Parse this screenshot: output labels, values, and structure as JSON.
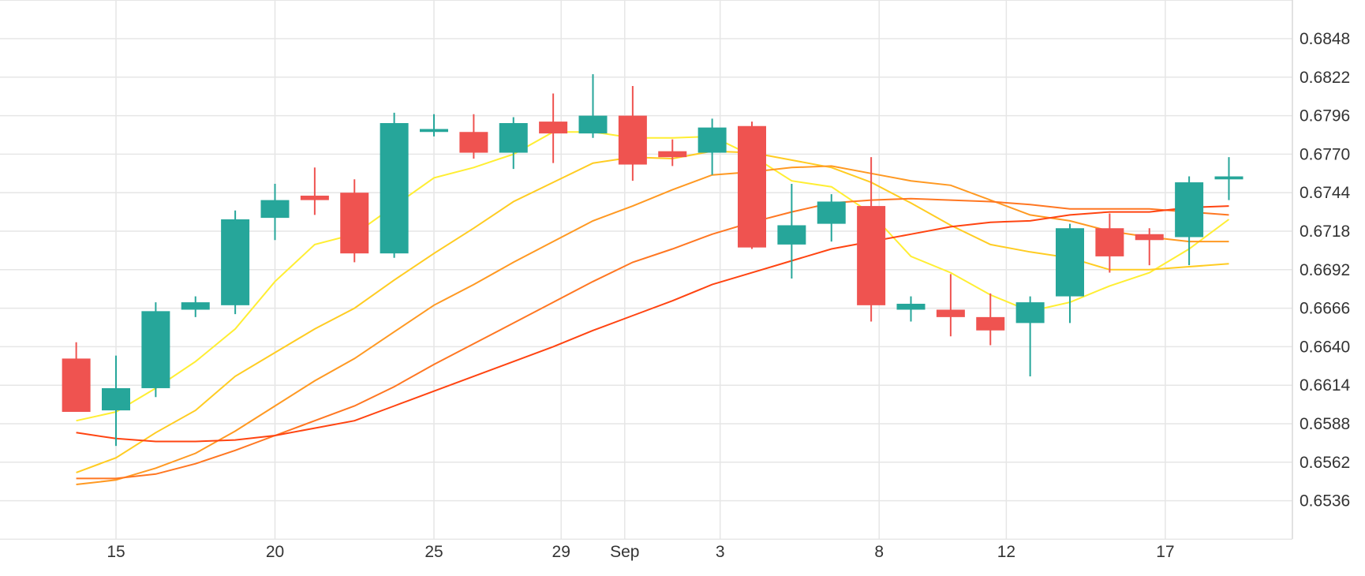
{
  "chart_data": {
    "type": "candlestick",
    "title": "",
    "xlabel": "",
    "ylabel": "",
    "y_axis_position": "right",
    "grid": true,
    "ylim": [
      0.651,
      0.687
    ],
    "y_ticks": [
      "0.6536",
      "0.6562",
      "0.6588",
      "0.6614",
      "0.6640",
      "0.6666",
      "0.6692",
      "0.6718",
      "0.6744",
      "0.6770",
      "0.6796",
      "0.6822",
      "0.6848"
    ],
    "x_tick_labels": [
      {
        "label": "15",
        "day": 15
      },
      {
        "label": "20",
        "day": 20
      },
      {
        "label": "25",
        "day": 25
      },
      {
        "label": "29",
        "day": 29
      },
      {
        "label": "Sep",
        "day": 31
      },
      {
        "label": "3",
        "day": 34
      },
      {
        "label": "8",
        "day": 39
      },
      {
        "label": "12",
        "day": 43
      },
      {
        "label": "17",
        "day": 48
      }
    ],
    "colors": {
      "up": "#26a69a",
      "down": "#ef5350",
      "grid": "#e6e6e6",
      "axis": "#d9d9d9"
    },
    "candles": [
      {
        "day": 13.75,
        "open": 0.6632,
        "high": 0.6643,
        "low": 0.6597,
        "close": 0.6596
      },
      {
        "day": 15.0,
        "open": 0.6597,
        "high": 0.6634,
        "low": 0.6573,
        "close": 0.6612
      },
      {
        "day": 16.25,
        "open": 0.6612,
        "high": 0.667,
        "low": 0.6606,
        "close": 0.6664
      },
      {
        "day": 17.5,
        "open": 0.6665,
        "high": 0.6674,
        "low": 0.666,
        "close": 0.667
      },
      {
        "day": 18.75,
        "open": 0.6668,
        "high": 0.6732,
        "low": 0.6662,
        "close": 0.6726
      },
      {
        "day": 20.0,
        "open": 0.6727,
        "high": 0.675,
        "low": 0.6712,
        "close": 0.6739
      },
      {
        "day": 21.25,
        "open": 0.6742,
        "high": 0.6761,
        "low": 0.6729,
        "close": 0.6739
      },
      {
        "day": 22.5,
        "open": 0.6744,
        "high": 0.6753,
        "low": 0.6697,
        "close": 0.6703
      },
      {
        "day": 23.75,
        "open": 0.6703,
        "high": 0.6798,
        "low": 0.67,
        "close": 0.6791
      },
      {
        "day": 25.0,
        "open": 0.6785,
        "high": 0.6797,
        "low": 0.6782,
        "close": 0.6787
      },
      {
        "day": 26.25,
        "open": 0.6785,
        "high": 0.6797,
        "low": 0.6767,
        "close": 0.6771
      },
      {
        "day": 27.5,
        "open": 0.6771,
        "high": 0.6795,
        "low": 0.676,
        "close": 0.6791
      },
      {
        "day": 28.75,
        "open": 0.6792,
        "high": 0.6811,
        "low": 0.6764,
        "close": 0.6784
      },
      {
        "day": 30.0,
        "open": 0.6784,
        "high": 0.6824,
        "low": 0.6781,
        "close": 0.6796
      },
      {
        "day": 31.25,
        "open": 0.6796,
        "high": 0.6816,
        "low": 0.6752,
        "close": 0.6763
      },
      {
        "day": 32.5,
        "open": 0.6772,
        "high": 0.678,
        "low": 0.6762,
        "close": 0.6768
      },
      {
        "day": 33.75,
        "open": 0.6771,
        "high": 0.6794,
        "low": 0.6756,
        "close": 0.6788
      },
      {
        "day": 35.0,
        "open": 0.6789,
        "high": 0.6792,
        "low": 0.6706,
        "close": 0.6707
      },
      {
        "day": 36.25,
        "open": 0.6709,
        "high": 0.675,
        "low": 0.6686,
        "close": 0.6722
      },
      {
        "day": 37.5,
        "open": 0.6723,
        "high": 0.6743,
        "low": 0.6711,
        "close": 0.6738
      },
      {
        "day": 38.75,
        "open": 0.6735,
        "high": 0.6768,
        "low": 0.6657,
        "close": 0.6668
      },
      {
        "day": 40.0,
        "open": 0.6665,
        "high": 0.6674,
        "low": 0.6657,
        "close": 0.6669
      },
      {
        "day": 41.25,
        "open": 0.6665,
        "high": 0.6689,
        "low": 0.6647,
        "close": 0.666
      },
      {
        "day": 42.5,
        "open": 0.666,
        "high": 0.6676,
        "low": 0.6641,
        "close": 0.6651
      },
      {
        "day": 43.75,
        "open": 0.6656,
        "high": 0.6674,
        "low": 0.662,
        "close": 0.667
      },
      {
        "day": 45.0,
        "open": 0.6674,
        "high": 0.6723,
        "low": 0.6656,
        "close": 0.672
      },
      {
        "day": 46.25,
        "open": 0.672,
        "high": 0.673,
        "low": 0.669,
        "close": 0.6701
      },
      {
        "day": 47.5,
        "open": 0.6716,
        "high": 0.672,
        "low": 0.6695,
        "close": 0.6712
      },
      {
        "day": 48.75,
        "open": 0.6714,
        "high": 0.6755,
        "low": 0.6695,
        "close": 0.6751
      },
      {
        "day": 50.0,
        "open": 0.6753,
        "high": 0.6768,
        "low": 0.6739,
        "close": 0.6755
      }
    ],
    "moving_averages": [
      {
        "color": "#ffee33",
        "points": [
          [
            13.75,
            0.659
          ],
          [
            15.0,
            0.6596
          ],
          [
            16.25,
            0.6612
          ],
          [
            17.5,
            0.663
          ],
          [
            18.75,
            0.6652
          ],
          [
            20.0,
            0.6684
          ],
          [
            21.25,
            0.6709
          ],
          [
            22.5,
            0.6716
          ],
          [
            23.75,
            0.6735
          ],
          [
            25.0,
            0.6754
          ],
          [
            26.25,
            0.6761
          ],
          [
            27.5,
            0.677
          ],
          [
            28.75,
            0.6785
          ],
          [
            30.0,
            0.6785
          ],
          [
            31.25,
            0.6781
          ],
          [
            32.5,
            0.6781
          ],
          [
            33.75,
            0.6782
          ],
          [
            35.0,
            0.6769
          ],
          [
            36.25,
            0.6752
          ],
          [
            37.5,
            0.6748
          ],
          [
            38.75,
            0.673
          ],
          [
            40.0,
            0.6701
          ],
          [
            41.25,
            0.669
          ],
          [
            42.5,
            0.6675
          ],
          [
            43.75,
            0.6664
          ],
          [
            45.0,
            0.667
          ],
          [
            46.25,
            0.6681
          ],
          [
            47.5,
            0.669
          ],
          [
            48.75,
            0.6706
          ],
          [
            50.0,
            0.6726
          ]
        ]
      },
      {
        "color": "#ffcc22",
        "points": [
          [
            13.75,
            0.6555
          ],
          [
            15.0,
            0.6565
          ],
          [
            16.25,
            0.6582
          ],
          [
            17.5,
            0.6597
          ],
          [
            18.75,
            0.662
          ],
          [
            20.0,
            0.6636
          ],
          [
            21.25,
            0.6652
          ],
          [
            22.5,
            0.6666
          ],
          [
            23.75,
            0.6685
          ],
          [
            25.0,
            0.6703
          ],
          [
            26.25,
            0.672
          ],
          [
            27.5,
            0.6738
          ],
          [
            28.75,
            0.6751
          ],
          [
            30.0,
            0.6764
          ],
          [
            31.25,
            0.6768
          ],
          [
            32.5,
            0.6767
          ],
          [
            33.75,
            0.6772
          ],
          [
            35.0,
            0.6771
          ],
          [
            36.25,
            0.6766
          ],
          [
            37.5,
            0.6761
          ],
          [
            38.75,
            0.6751
          ],
          [
            40.0,
            0.6737
          ],
          [
            41.25,
            0.6722
          ],
          [
            42.5,
            0.6709
          ],
          [
            43.75,
            0.6704
          ],
          [
            45.0,
            0.67
          ],
          [
            46.25,
            0.6692
          ],
          [
            47.5,
            0.6692
          ],
          [
            48.75,
            0.6694
          ],
          [
            50.0,
            0.6696
          ]
        ]
      },
      {
        "color": "#ff9922",
        "points": [
          [
            13.75,
            0.6547
          ],
          [
            15.0,
            0.655
          ],
          [
            16.25,
            0.6558
          ],
          [
            17.5,
            0.6568
          ],
          [
            18.75,
            0.6583
          ],
          [
            20.0,
            0.66
          ],
          [
            21.25,
            0.6617
          ],
          [
            22.5,
            0.6632
          ],
          [
            23.75,
            0.665
          ],
          [
            25.0,
            0.6668
          ],
          [
            26.25,
            0.6682
          ],
          [
            27.5,
            0.6697
          ],
          [
            28.75,
            0.6711
          ],
          [
            30.0,
            0.6725
          ],
          [
            31.25,
            0.6735
          ],
          [
            32.5,
            0.6746
          ],
          [
            33.75,
            0.6756
          ],
          [
            35.0,
            0.6758
          ],
          [
            36.25,
            0.6761
          ],
          [
            37.5,
            0.6762
          ],
          [
            38.75,
            0.6757
          ],
          [
            40.0,
            0.6752
          ],
          [
            41.25,
            0.6749
          ],
          [
            42.5,
            0.6739
          ],
          [
            43.75,
            0.6729
          ],
          [
            45.0,
            0.6725
          ],
          [
            46.25,
            0.6718
          ],
          [
            47.5,
            0.6714
          ],
          [
            48.75,
            0.6711
          ],
          [
            50.0,
            0.6711
          ]
        ]
      },
      {
        "color": "#ff7722",
        "points": [
          [
            13.75,
            0.6551
          ],
          [
            15.0,
            0.6551
          ],
          [
            16.25,
            0.6554
          ],
          [
            17.5,
            0.6561
          ],
          [
            18.75,
            0.657
          ],
          [
            20.0,
            0.658
          ],
          [
            21.25,
            0.659
          ],
          [
            22.5,
            0.66
          ],
          [
            23.75,
            0.6613
          ],
          [
            25.0,
            0.6628
          ],
          [
            26.25,
            0.6642
          ],
          [
            27.5,
            0.6656
          ],
          [
            28.75,
            0.667
          ],
          [
            30.0,
            0.6684
          ],
          [
            31.25,
            0.6697
          ],
          [
            32.5,
            0.6706
          ],
          [
            33.75,
            0.6716
          ],
          [
            35.0,
            0.6724
          ],
          [
            36.25,
            0.6731
          ],
          [
            37.5,
            0.6737
          ],
          [
            38.75,
            0.6739
          ],
          [
            40.0,
            0.674
          ],
          [
            41.25,
            0.6739
          ],
          [
            42.5,
            0.6738
          ],
          [
            43.75,
            0.6736
          ],
          [
            45.0,
            0.6733
          ],
          [
            46.25,
            0.6733
          ],
          [
            47.5,
            0.6733
          ],
          [
            48.75,
            0.6731
          ],
          [
            50.0,
            0.6729
          ]
        ]
      },
      {
        "color": "#ff4411",
        "points": [
          [
            13.75,
            0.6582
          ],
          [
            15.0,
            0.6578
          ],
          [
            16.25,
            0.6576
          ],
          [
            17.5,
            0.6576
          ],
          [
            18.75,
            0.6577
          ],
          [
            20.0,
            0.658
          ],
          [
            21.25,
            0.6585
          ],
          [
            22.5,
            0.659
          ],
          [
            23.75,
            0.66
          ],
          [
            25.0,
            0.661
          ],
          [
            26.25,
            0.662
          ],
          [
            27.5,
            0.663
          ],
          [
            28.75,
            0.664
          ],
          [
            30.0,
            0.6651
          ],
          [
            31.25,
            0.6661
          ],
          [
            32.5,
            0.6671
          ],
          [
            33.75,
            0.6682
          ],
          [
            35.0,
            0.669
          ],
          [
            36.25,
            0.6698
          ],
          [
            37.5,
            0.6706
          ],
          [
            38.75,
            0.6711
          ],
          [
            40.0,
            0.6716
          ],
          [
            41.25,
            0.6721
          ],
          [
            42.5,
            0.6724
          ],
          [
            43.75,
            0.6725
          ],
          [
            45.0,
            0.6729
          ],
          [
            46.25,
            0.6731
          ],
          [
            47.5,
            0.6731
          ],
          [
            48.75,
            0.6734
          ],
          [
            50.0,
            0.6735
          ]
        ]
      }
    ]
  }
}
